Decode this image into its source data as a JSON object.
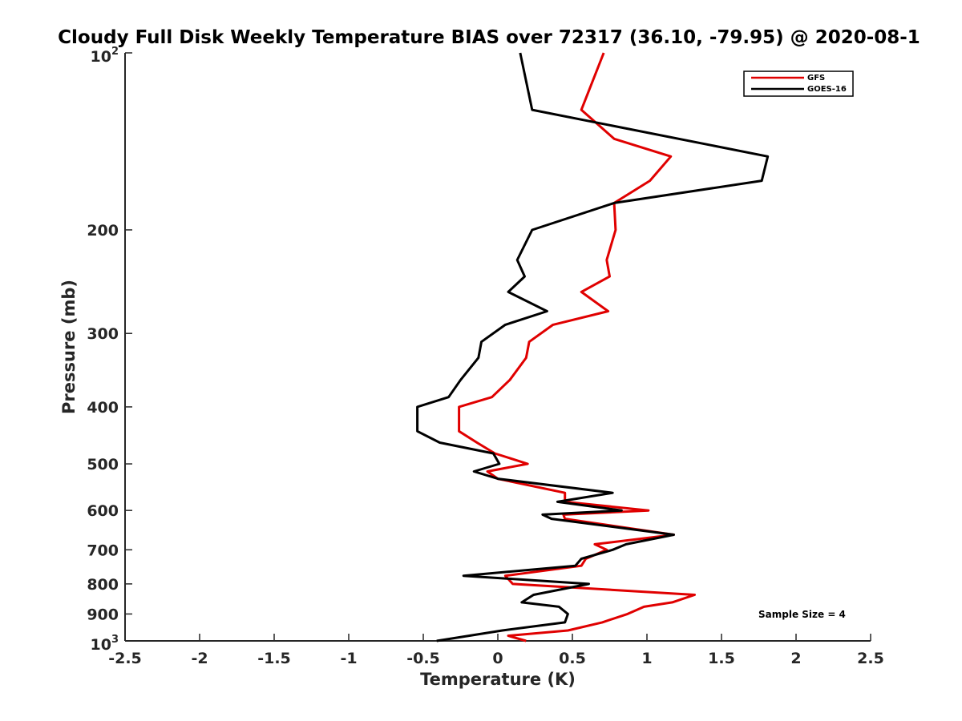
{
  "chart_data": {
    "type": "line",
    "title": "Cloudy Full Disk Weekly Temperature BIAS over 72317 (36.10, -79.95) @ 2020-08-1",
    "xlabel": "Temperature (K)",
    "ylabel": "Pressure (mb)",
    "xlim": [
      -2.5,
      2.5
    ],
    "ylim": [
      100,
      1000
    ],
    "y_scale": "log",
    "y_reversed": true,
    "grid": false,
    "legend_position": "top-right",
    "x_ticks": [
      "-2.5",
      "-2",
      "-1.5",
      "-1",
      "-0.5",
      "0",
      "0.5",
      "1",
      "1.5",
      "2",
      "2.5"
    ],
    "x_tick_values": [
      -2.5,
      -2,
      -1.5,
      -1,
      -0.5,
      0,
      0.5,
      1,
      1.5,
      2,
      2.5
    ],
    "y_ticks": [
      {
        "value": 200,
        "label": "200"
      },
      {
        "value": 300,
        "label": "300"
      },
      {
        "value": 400,
        "label": "400"
      },
      {
        "value": 500,
        "label": "500"
      },
      {
        "value": 600,
        "label": "600"
      },
      {
        "value": 700,
        "label": "700"
      },
      {
        "value": 800,
        "label": "800"
      },
      {
        "value": 900,
        "label": "900"
      }
    ],
    "y_tick_top": {
      "base": "10",
      "exp": "2"
    },
    "y_tick_bottom": {
      "base": "10",
      "exp": "3"
    },
    "annotation": "Sample Size = 4",
    "series": [
      {
        "name": "GFS",
        "color": "#e00000",
        "points": [
          [
            0.71,
            100
          ],
          [
            0.56,
            125
          ],
          [
            0.78,
            140
          ],
          [
            1.16,
            150
          ],
          [
            1.02,
            165
          ],
          [
            0.78,
            180
          ],
          [
            0.79,
            200
          ],
          [
            0.73,
            225
          ],
          [
            0.75,
            240
          ],
          [
            0.56,
            255
          ],
          [
            0.74,
            275
          ],
          [
            0.37,
            290
          ],
          [
            0.21,
            310
          ],
          [
            0.19,
            330
          ],
          [
            0.08,
            360
          ],
          [
            -0.04,
            385
          ],
          [
            -0.26,
            400
          ],
          [
            -0.26,
            440
          ],
          [
            -0.14,
            460
          ],
          [
            -0.02,
            480
          ],
          [
            0.2,
            500
          ],
          [
            -0.07,
            515
          ],
          [
            0,
            530
          ],
          [
            0.45,
            560
          ],
          [
            0.45,
            580
          ],
          [
            1.01,
            600
          ],
          [
            0.44,
            610
          ],
          [
            0.45,
            620
          ],
          [
            1.18,
            660
          ],
          [
            0.65,
            685
          ],
          [
            0.73,
            700
          ],
          [
            0.59,
            725
          ],
          [
            0.56,
            745
          ],
          [
            0.05,
            775
          ],
          [
            0.1,
            800
          ],
          [
            1.32,
            835
          ],
          [
            1.17,
            860
          ],
          [
            0.98,
            875
          ],
          [
            0.87,
            900
          ],
          [
            0.7,
            930
          ],
          [
            0.47,
            960
          ],
          [
            0.07,
            980
          ],
          [
            0.19,
            1000
          ]
        ]
      },
      {
        "name": "GOES-16",
        "color": "#000000",
        "points": [
          [
            0.15,
            100
          ],
          [
            0.23,
            125
          ],
          [
            1.81,
            150
          ],
          [
            1.77,
            165
          ],
          [
            0.78,
            180
          ],
          [
            0.23,
            200
          ],
          [
            0.13,
            225
          ],
          [
            0.18,
            240
          ],
          [
            0.07,
            255
          ],
          [
            0.33,
            275
          ],
          [
            0.05,
            290
          ],
          [
            -0.11,
            310
          ],
          [
            -0.13,
            330
          ],
          [
            -0.25,
            360
          ],
          [
            -0.33,
            385
          ],
          [
            -0.54,
            400
          ],
          [
            -0.54,
            440
          ],
          [
            -0.39,
            460
          ],
          [
            -0.03,
            480
          ],
          [
            0.01,
            500
          ],
          [
            -0.16,
            515
          ],
          [
            0,
            530
          ],
          [
            0.77,
            560
          ],
          [
            0.4,
            580
          ],
          [
            0.83,
            600
          ],
          [
            0.3,
            610
          ],
          [
            0.36,
            620
          ],
          [
            1.18,
            660
          ],
          [
            0.86,
            685
          ],
          [
            0.77,
            700
          ],
          [
            0.56,
            725
          ],
          [
            0.52,
            745
          ],
          [
            -0.23,
            775
          ],
          [
            0.61,
            800
          ],
          [
            0.24,
            835
          ],
          [
            0.16,
            860
          ],
          [
            0.41,
            875
          ],
          [
            0.47,
            900
          ],
          [
            0.45,
            930
          ],
          [
            0.03,
            960
          ],
          [
            -0.41,
            1000
          ]
        ]
      }
    ]
  }
}
